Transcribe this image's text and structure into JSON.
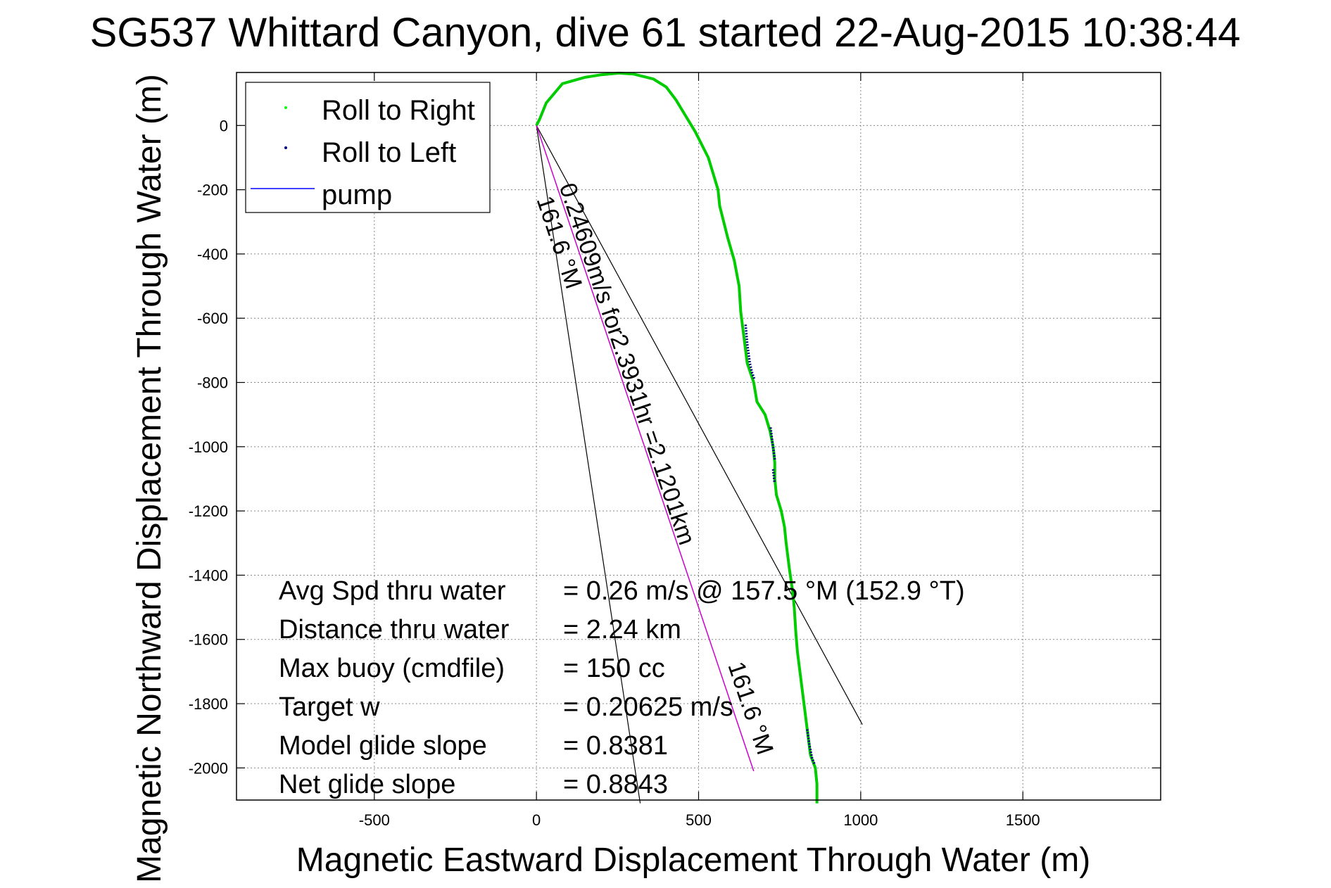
{
  "chart_data": {
    "type": "line",
    "title": "SG537 Whittard Canyon, dive 61 started 22-Aug-2015 10:38:44",
    "xlabel": "Magnetic Eastward Displacement Through Water (m)",
    "ylabel": "Magnetic Northward Displacement Through Water (m)",
    "xlim": [
      -925,
      1925
    ],
    "ylim": [
      -2100,
      165
    ],
    "xticks": [
      -500,
      0,
      500,
      1000,
      1500
    ],
    "yticks": [
      0,
      -200,
      -400,
      -600,
      -800,
      -1000,
      -1200,
      -1400,
      -1600,
      -1800,
      -2000
    ],
    "grid": true,
    "legend_position": "top-left",
    "legend": [
      {
        "label": "Roll to Right",
        "color": "#00ff00",
        "marker": "dot"
      },
      {
        "label": "Roll to Left",
        "color": "#000080",
        "marker": "dot"
      },
      {
        "label": "pump",
        "color": "#0000ff",
        "marker": "line"
      }
    ],
    "series": [
      {
        "name": "Roll to Right",
        "color": "#00cc00",
        "x": [
          0,
          10,
          30,
          80,
          150,
          200,
          255,
          300,
          360,
          400,
          430,
          460,
          490,
          530,
          560,
          565,
          575,
          590,
          610,
          625,
          630,
          640,
          650,
          670,
          680,
          705,
          720,
          730,
          735,
          735,
          740,
          755,
          765,
          770,
          780,
          790,
          795,
          800,
          805,
          815,
          825,
          835,
          845,
          860,
          865,
          865
        ],
        "y": [
          0,
          20,
          70,
          130,
          150,
          158,
          163,
          160,
          145,
          120,
          80,
          30,
          -20,
          -100,
          -200,
          -250,
          -290,
          -350,
          -420,
          -500,
          -580,
          -660,
          -740,
          -800,
          -860,
          -900,
          -950,
          -1000,
          -1050,
          -1100,
          -1150,
          -1200,
          -1250,
          -1300,
          -1380,
          -1450,
          -1500,
          -1580,
          -1640,
          -1720,
          -1800,
          -1880,
          -1960,
          -2000,
          -2050,
          -2110
        ]
      },
      {
        "name": "Roll to Left",
        "color": "#000080",
        "segments": [
          {
            "x": [
              645,
              650,
              658,
              665,
              672
            ],
            "y": [
              -620,
              -680,
              -740,
              -770,
              -790
            ]
          },
          {
            "x": [
              722,
              728,
              735
            ],
            "y": [
              -940,
              -990,
              -1040
            ]
          },
          {
            "x": [
              730,
              734
            ],
            "y": [
              -1070,
              -1110
            ]
          },
          {
            "x": [
              835,
              842,
              850,
              858
            ],
            "y": [
              -1880,
              -1930,
              -1970,
              -1990
            ]
          }
        ]
      },
      {
        "name": "pump",
        "color": "#cc00cc",
        "x": [
          0,
          670
        ],
        "y": [
          0,
          -2010
        ]
      }
    ],
    "reference_lines": [
      {
        "x": [
          0,
          1005
        ],
        "y": [
          0,
          -1865
        ]
      },
      {
        "x": [
          0,
          320
        ],
        "y": [
          0,
          -2110
        ]
      }
    ],
    "annotations": [
      {
        "text": "0.24609m/s for2.3931hr =2.1201km",
        "x": 70,
        "y": -190
      },
      {
        "text": "161.6 °M",
        "x": 0,
        "y": -230
      },
      {
        "text": "161.6 °M",
        "x": 590,
        "y": -1680
      }
    ],
    "stats": [
      {
        "label": "Avg Spd thru water",
        "value": "=  0.26 m/s @ 157.5 °M (152.9 °T)"
      },
      {
        "label": "Distance thru water",
        "value": "=  2.24 km"
      },
      {
        "label": "Max buoy (cmdfile)",
        "value": "= 150 cc"
      },
      {
        "label": "Target w",
        "value": "= 0.20625 m/s"
      },
      {
        "label": "Model glide slope",
        "value": "= 0.8381"
      },
      {
        "label": "Net glide slope",
        "value": "= 0.8843"
      }
    ]
  }
}
